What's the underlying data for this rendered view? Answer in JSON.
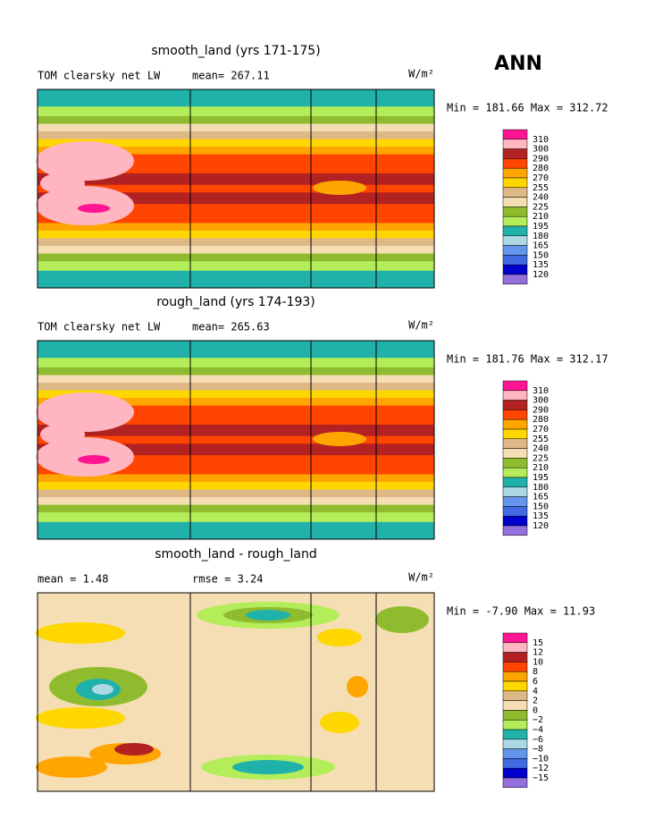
{
  "season": "ANN",
  "colorbar_colors": [
    "#ff1493",
    "#ffb6c1",
    "#b22222",
    "#ff4500",
    "#ffa500",
    "#ffd700",
    "#deb887",
    "#f5deb3",
    "#8fbc2f",
    "#b3ee5a",
    "#20b2aa",
    "#add8e6",
    "#6495ed",
    "#4169e1",
    "#0000cd",
    "#9370db"
  ],
  "panels": [
    {
      "title": "smooth_land (yrs 171-175)",
      "left_label": "TOM clearsky net LW",
      "mid_label": "mean= 267.11",
      "units": "W/m²",
      "minmax": "Min = 181.66 Max = 312.72",
      "levels": [
        "310",
        "300",
        "290",
        "280",
        "270",
        "255",
        "240",
        "225",
        "210",
        "195",
        "180",
        "165",
        "150",
        "135",
        "120"
      ]
    },
    {
      "title": "rough_land (yrs 174-193)",
      "left_label": "TOM clearsky net LW",
      "mid_label": "mean= 265.63",
      "units": "W/m²",
      "minmax": "Min = 181.76 Max = 312.17",
      "levels": [
        "310",
        "300",
        "290",
        "280",
        "270",
        "255",
        "240",
        "225",
        "210",
        "195",
        "180",
        "165",
        "150",
        "135",
        "120"
      ]
    },
    {
      "title": "smooth_land - rough_land",
      "left_label": "mean =    1.48",
      "mid_label": "rmse =    3.24",
      "units": "W/m²",
      "minmax": "Min =  -7.90 Max =  11.93",
      "levels": [
        "15",
        "12",
        "10",
        "8",
        "6",
        "4",
        "2",
        "0",
        "−2",
        "−4",
        "−6",
        "−8",
        "−10",
        "−12",
        "−15"
      ]
    }
  ]
}
